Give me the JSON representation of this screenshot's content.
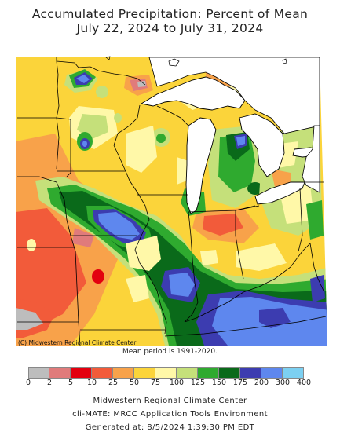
{
  "title_line1": "Accumulated Precipitation: Percent of Mean",
  "title_line2": "July 22, 2024 to July 31, 2024",
  "map_credit": "(C) Midwestern Regional Climate Center",
  "mean_period": "Mean period is 1991-2020.",
  "legend": {
    "unit": "percent of mean",
    "bins": [
      {
        "from": 0,
        "to": 2,
        "color": "#bdbdbd"
      },
      {
        "from": 2,
        "to": 5,
        "color": "#e07b7b"
      },
      {
        "from": 5,
        "to": 10,
        "color": "#e3000f"
      },
      {
        "from": 10,
        "to": 25,
        "color": "#f25b3a"
      },
      {
        "from": 25,
        "to": 50,
        "color": "#f8a24a"
      },
      {
        "from": 50,
        "to": 75,
        "color": "#fbd43a"
      },
      {
        "from": 75,
        "to": 100,
        "color": "#fff8a8"
      },
      {
        "from": 100,
        "to": 125,
        "color": "#c5e07a"
      },
      {
        "from": 125,
        "to": 150,
        "color": "#2faa2f"
      },
      {
        "from": 150,
        "to": 175,
        "color": "#0a6a1a"
      },
      {
        "from": 175,
        "to": 200,
        "color": "#3c3cb0"
      },
      {
        "from": 200,
        "to": 300,
        "color": "#5e87ee"
      },
      {
        "from": 300,
        "to": 400,
        "color": "#7cd0f2"
      }
    ],
    "tick_labels": [
      "0",
      "2",
      "5",
      "10",
      "25",
      "50",
      "75",
      "100",
      "125",
      "150",
      "175",
      "200",
      "300",
      "400"
    ]
  },
  "footer": {
    "line1": "Midwestern Regional Climate Center",
    "line2": "cli-MATE: MRCC Application Tools Environment",
    "line3": "Generated at: 8/5/2024 1:39:30 PM EDT"
  }
}
